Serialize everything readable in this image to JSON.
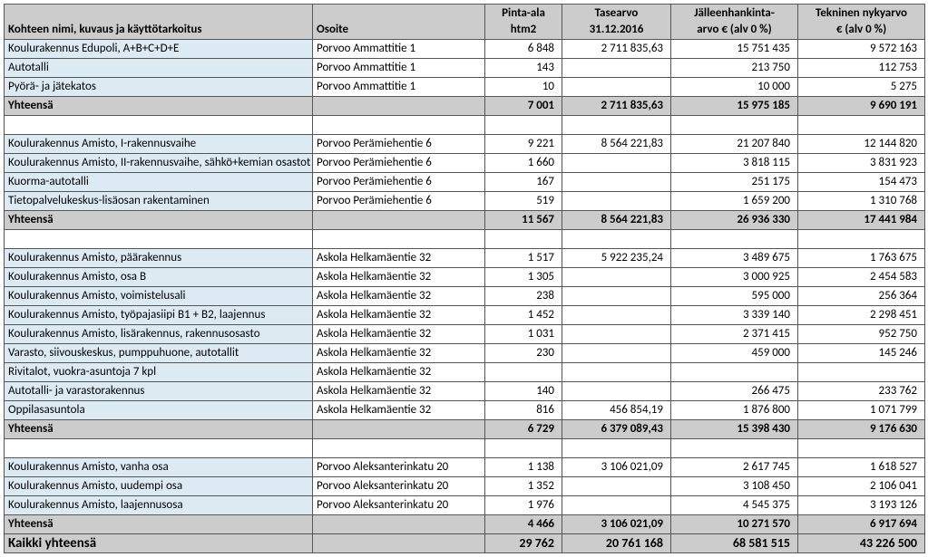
{
  "headers": {
    "name": "Kohteen nimi, kuvaus ja käyttötarkoitus",
    "addr": "Osoite",
    "area1": "Pinta-ala",
    "area2": "htm2",
    "val1a": "Tasearvo",
    "val1b": "31.12.2016",
    "val2a": "Jälleenhankinta-",
    "val2b": "arvo € (alv 0 %)",
    "val3a": "Tekninen nykyarvo",
    "val3b": "€ (alv 0 %)"
  },
  "subtotal_label": "Yhteensä",
  "grand_label": "Kaikki yhteensä",
  "groups": [
    {
      "rows": [
        {
          "name": "Koulurakennus Edupoli, A+B+C+D+E",
          "addr": "Porvoo Ammattitie 1",
          "area": "6 848",
          "v1": "2 711 835,63",
          "v2": "15 751 435",
          "v3": "9 572 163"
        },
        {
          "name": "Autotalli",
          "addr": "Porvoo Ammattitie 1",
          "area": "143",
          "v1": "",
          "v2": "213 750",
          "v3": "112 753"
        },
        {
          "name": "Pyörä- ja jätekatos",
          "addr": "Porvoo Ammattitie 1",
          "area": "10",
          "v1": "",
          "v2": "10 000",
          "v3": "5 275"
        }
      ],
      "sub": {
        "area": "7 001",
        "v1": "2 711 835,63",
        "v2": "15 975 185",
        "v3": "9 690 191"
      }
    },
    {
      "rows": [
        {
          "name": "Koulurakennus Amisto, I-rakennusvaihe",
          "addr": "Porvoo Perämiehentie 6",
          "area": "9 221",
          "v1": "8 564 221,83",
          "v2": "21 207 840",
          "v3": "12 144 820"
        },
        {
          "name": "Koulurakennus Amisto, II-rakennusvaihe, sähkö+kemian osastot",
          "addr": "Porvoo Perämiehentie 6",
          "area": "1 660",
          "v1": "",
          "v2": "3 818 115",
          "v3": "3 831 923"
        },
        {
          "name": "Kuorma-autotalli",
          "addr": "Porvoo Perämiehentie 6",
          "area": "167",
          "v1": "",
          "v2": "251 175",
          "v3": "154 473"
        },
        {
          "name": "Tietopalvelukeskus-lisäosan rakentaminen",
          "addr": "Porvoo Perämiehentie 6",
          "area": "519",
          "v1": "",
          "v2": "1 659 200",
          "v3": "1 310 768"
        }
      ],
      "sub": {
        "area": "11 567",
        "v1": "8 564 221,83",
        "v2": "26 936 330",
        "v3": "17 441 984"
      }
    },
    {
      "rows": [
        {
          "name": "Koulurakennus Amisto, päärakennus",
          "addr": "Askola Helkamäentie 32",
          "area": "1 517",
          "v1": "5 922 235,24",
          "v2": "3 489 675",
          "v3": "1 763 675"
        },
        {
          "name": "Koulurakennus Amisto, osa B",
          "addr": "Askola Helkamäentie 32",
          "area": "1 305",
          "v1": "",
          "v2": "3 000 925",
          "v3": "2 454 583"
        },
        {
          "name": "Koulurakennus Amisto, voimistelusali",
          "addr": "Askola Helkamäentie 32",
          "area": "238",
          "v1": "",
          "v2": "595 000",
          "v3": "256 364"
        },
        {
          "name": "Koulurakennus Amisto, työpajasiipi B1 + B2, laajennus",
          "addr": "Askola Helkamäentie 32",
          "area": "1 452",
          "v1": "",
          "v2": "3 339 140",
          "v3": "2 298 451"
        },
        {
          "name": "Koulurakennus Amisto, lisärakennus, rakennusosasto",
          "addr": "Askola Helkamäentie 32",
          "area": "1 031",
          "v1": "",
          "v2": "2 371 415",
          "v3": "952 750"
        },
        {
          "name": "Varasto, siivouskeskus, pumppuhuone, autotallit",
          "addr": "Askola Helkamäentie 32",
          "area": "230",
          "v1": "",
          "v2": "459 000",
          "v3": "145 246"
        },
        {
          "name": "Rivitalot, vuokra-asuntoja 7 kpl",
          "addr": "Askola Helkamäentie 32",
          "area": "",
          "v1": "",
          "v2": "",
          "v3": ""
        },
        {
          "name": "Autotalli- ja varastorakennus",
          "addr": "Askola Helkamäentie 32",
          "area": "140",
          "v1": "",
          "v2": "266 475",
          "v3": "233 762"
        },
        {
          "name": "Oppilasasuntola",
          "addr": "Askola Helkamäentie 32",
          "area": "816",
          "v1": "456 854,19",
          "v2": "1 876 800",
          "v3": "1 071 799"
        }
      ],
      "sub": {
        "area": "6 729",
        "v1": "6 379 089,43",
        "v2": "15 398 430",
        "v3": "9 176 630"
      }
    },
    {
      "rows": [
        {
          "name": "Koulurakennus Amisto, vanha osa",
          "addr": "Porvoo Aleksanterinkatu 20",
          "area": "1 138",
          "v1": "3 106 021,09",
          "v2": "2 617 745",
          "v3": "1 618 527"
        },
        {
          "name": "Koulurakennus Amisto, uudempi osa",
          "addr": "Porvoo Aleksanterinkatu 20",
          "area": "1 352",
          "v1": "",
          "v2": "3 108 450",
          "v3": "2 106 041"
        },
        {
          "name": "Koulurakennus Amisto, laajennusosa",
          "addr": "Porvoo Aleksanterinkatu 20",
          "area": "1 976",
          "v1": "",
          "v2": "4 545 375",
          "v3": "3 193 126"
        }
      ],
      "sub": {
        "area": "4 466",
        "v1": "3 106 021,09",
        "v2": "10 271 570",
        "v3": "6 917 694"
      }
    }
  ],
  "grand": {
    "area": "29 762",
    "v1": "20 761 168",
    "v2": "68 581 515",
    "v3": "43 226 500"
  }
}
